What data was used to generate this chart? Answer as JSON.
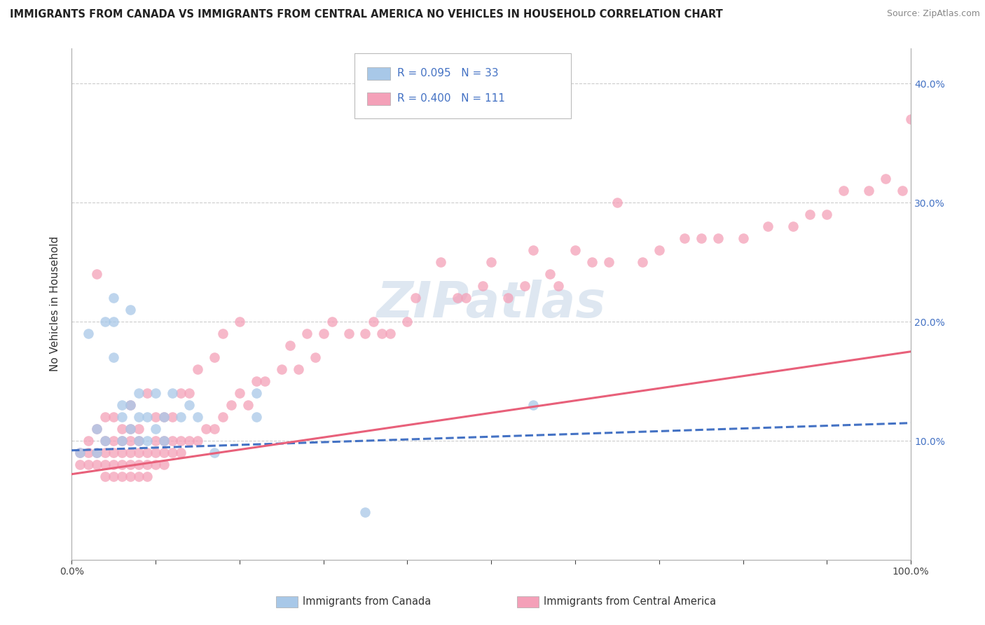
{
  "title": "IMMIGRANTS FROM CANADA VS IMMIGRANTS FROM CENTRAL AMERICA NO VEHICLES IN HOUSEHOLD CORRELATION CHART",
  "source": "Source: ZipAtlas.com",
  "ylabel": "No Vehicles in Household",
  "legend_canada_R": "R = 0.095",
  "legend_canada_N": "N = 33",
  "legend_central_R": "R = 0.400",
  "legend_central_N": "N = 111",
  "xlim": [
    0.0,
    1.0
  ],
  "ylim": [
    0.0,
    0.43
  ],
  "xticks": [
    0.0,
    0.1,
    0.2,
    0.3,
    0.4,
    0.5,
    0.6,
    0.7,
    0.8,
    0.9,
    1.0
  ],
  "xticklabels": [
    "0.0%",
    "",
    "",
    "",
    "",
    "",
    "",
    "",
    "",
    "",
    "100.0%"
  ],
  "ytick_positions": [
    0.1,
    0.2,
    0.3,
    0.4
  ],
  "right_yticklabels": [
    "10.0%",
    "20.0%",
    "30.0%",
    "40.0%"
  ],
  "color_canada": "#a8c8e8",
  "color_canada_line": "#4472c4",
  "color_central": "#f4a0b8",
  "color_central_line": "#e8607a",
  "background": "#ffffff",
  "canada_x": [
    0.01,
    0.02,
    0.03,
    0.03,
    0.04,
    0.04,
    0.05,
    0.05,
    0.05,
    0.06,
    0.06,
    0.06,
    0.07,
    0.07,
    0.07,
    0.08,
    0.08,
    0.08,
    0.09,
    0.09,
    0.1,
    0.1,
    0.11,
    0.11,
    0.12,
    0.13,
    0.14,
    0.15,
    0.17,
    0.22,
    0.22,
    0.35,
    0.55
  ],
  "canada_y": [
    0.09,
    0.19,
    0.11,
    0.09,
    0.1,
    0.2,
    0.22,
    0.2,
    0.17,
    0.13,
    0.12,
    0.1,
    0.11,
    0.13,
    0.21,
    0.12,
    0.14,
    0.1,
    0.12,
    0.1,
    0.11,
    0.14,
    0.12,
    0.1,
    0.14,
    0.12,
    0.13,
    0.12,
    0.09,
    0.12,
    0.14,
    0.04,
    0.13
  ],
  "central_x": [
    0.01,
    0.01,
    0.02,
    0.02,
    0.02,
    0.03,
    0.03,
    0.03,
    0.03,
    0.04,
    0.04,
    0.04,
    0.04,
    0.04,
    0.05,
    0.05,
    0.05,
    0.05,
    0.05,
    0.06,
    0.06,
    0.06,
    0.06,
    0.06,
    0.07,
    0.07,
    0.07,
    0.07,
    0.07,
    0.07,
    0.08,
    0.08,
    0.08,
    0.08,
    0.08,
    0.09,
    0.09,
    0.09,
    0.09,
    0.1,
    0.1,
    0.1,
    0.1,
    0.11,
    0.11,
    0.11,
    0.11,
    0.12,
    0.12,
    0.12,
    0.13,
    0.13,
    0.13,
    0.14,
    0.14,
    0.15,
    0.15,
    0.16,
    0.17,
    0.17,
    0.18,
    0.18,
    0.19,
    0.2,
    0.2,
    0.21,
    0.22,
    0.23,
    0.25,
    0.26,
    0.27,
    0.28,
    0.29,
    0.3,
    0.31,
    0.33,
    0.35,
    0.36,
    0.37,
    0.38,
    0.4,
    0.41,
    0.44,
    0.46,
    0.47,
    0.49,
    0.5,
    0.52,
    0.54,
    0.55,
    0.57,
    0.58,
    0.6,
    0.62,
    0.64,
    0.65,
    0.68,
    0.7,
    0.73,
    0.75,
    0.77,
    0.8,
    0.83,
    0.86,
    0.88,
    0.9,
    0.92,
    0.95,
    0.97,
    0.99,
    1.0
  ],
  "central_y": [
    0.08,
    0.09,
    0.08,
    0.09,
    0.1,
    0.08,
    0.09,
    0.11,
    0.24,
    0.07,
    0.08,
    0.09,
    0.1,
    0.12,
    0.07,
    0.08,
    0.09,
    0.1,
    0.12,
    0.07,
    0.08,
    0.09,
    0.1,
    0.11,
    0.07,
    0.08,
    0.09,
    0.1,
    0.11,
    0.13,
    0.07,
    0.08,
    0.09,
    0.1,
    0.11,
    0.07,
    0.08,
    0.09,
    0.14,
    0.08,
    0.09,
    0.1,
    0.12,
    0.08,
    0.09,
    0.1,
    0.12,
    0.09,
    0.1,
    0.12,
    0.09,
    0.1,
    0.14,
    0.1,
    0.14,
    0.1,
    0.16,
    0.11,
    0.11,
    0.17,
    0.12,
    0.19,
    0.13,
    0.14,
    0.2,
    0.13,
    0.15,
    0.15,
    0.16,
    0.18,
    0.16,
    0.19,
    0.17,
    0.19,
    0.2,
    0.19,
    0.19,
    0.2,
    0.19,
    0.19,
    0.2,
    0.22,
    0.25,
    0.22,
    0.22,
    0.23,
    0.25,
    0.22,
    0.23,
    0.26,
    0.24,
    0.23,
    0.26,
    0.25,
    0.25,
    0.3,
    0.25,
    0.26,
    0.27,
    0.27,
    0.27,
    0.27,
    0.28,
    0.28,
    0.29,
    0.29,
    0.31,
    0.31,
    0.32,
    0.31,
    0.37
  ],
  "canada_reg": [
    0.092,
    0.115
  ],
  "central_reg": [
    0.072,
    0.175
  ],
  "watermark_text": "ZIPatlas",
  "watermark_color": "#c8d8e8",
  "grid_color": "#cccccc",
  "tick_color_blue": "#4472c4",
  "spine_color": "#aaaaaa"
}
